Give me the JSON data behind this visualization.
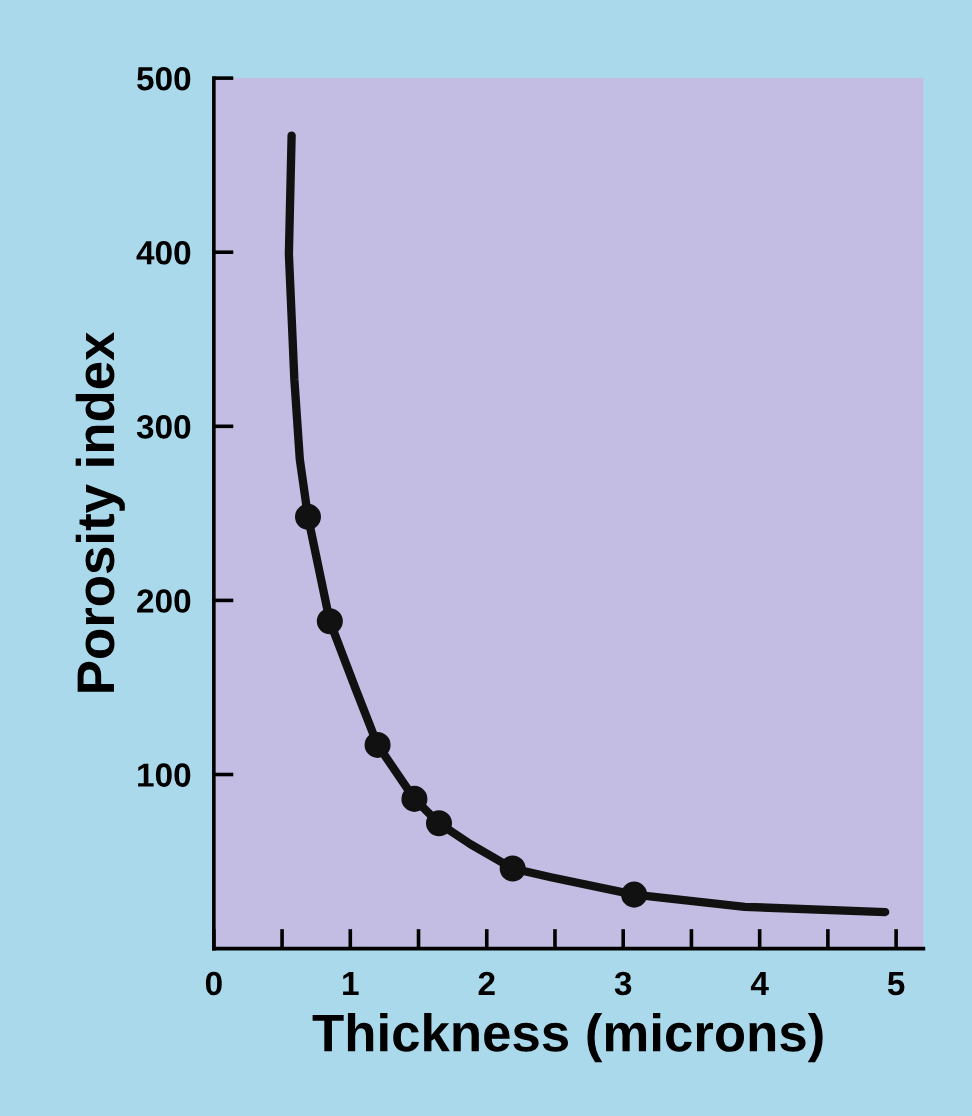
{
  "chart_data": {
    "type": "line",
    "xlabel": "Thickness (microns)",
    "ylabel": "Porosity index",
    "xlim": [
      0,
      5.2
    ],
    "ylim": [
      0,
      500
    ],
    "xticks": [
      0,
      {
        "value": 0.5,
        "label": null
      },
      1,
      {
        "value": 1.5,
        "label": null
      },
      2,
      {
        "value": 2.5,
        "label": null
      },
      3,
      {
        "value": 3.5,
        "label": null
      },
      4,
      {
        "value": 4.5,
        "label": null
      },
      5
    ],
    "yticks": [
      100,
      200,
      300,
      400,
      500
    ],
    "grid": false,
    "legend": false,
    "series": [
      {
        "color": "#111111",
        "marker": "none",
        "line_style": "solid",
        "x": [
          0.57,
          0.55,
          0.59,
          0.63,
          0.69,
          0.85,
          1.04,
          1.2,
          1.47,
          1.65,
          1.88,
          2.19,
          2.47,
          3.08,
          3.89,
          4.92
        ],
        "values": [
          467,
          399,
          327,
          281,
          248,
          188,
          149,
          117,
          86,
          72,
          60,
          46,
          41,
          31,
          24,
          21
        ]
      },
      {
        "type": "scatter",
        "color": "#111111",
        "marker": "circle",
        "x": [
          0.69,
          0.85,
          1.2,
          1.47,
          1.65,
          2.19,
          3.08
        ],
        "values": [
          248,
          188,
          117,
          86,
          72,
          46,
          31
        ]
      }
    ]
  }
}
